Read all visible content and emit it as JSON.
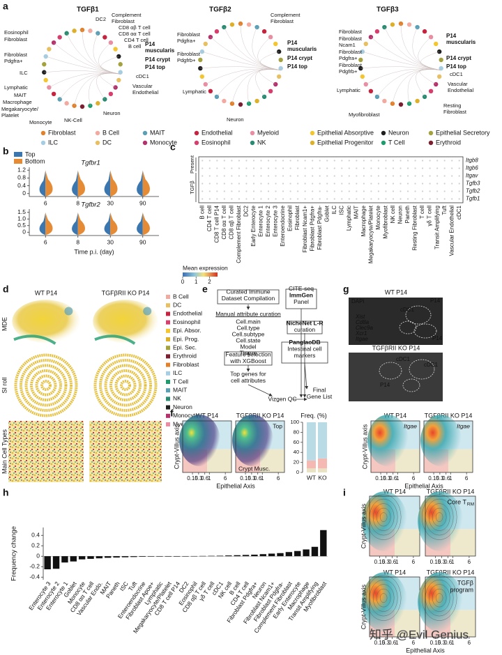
{
  "panel_labels": [
    "a",
    "b",
    "c",
    "d",
    "e",
    "f",
    "g",
    "h",
    "i"
  ],
  "a": {
    "circles": [
      {
        "title": "TGFβ1",
        "labels": [
          "DC2",
          "Complement",
          "Fibroblast",
          "Eosinophil",
          "Fibroblast",
          "CD8 αβ T cell",
          "CD8 αα T cell",
          "CD4 T cell",
          "B cell",
          "Fibroblast",
          "Pdgfra+",
          "ILC",
          "cDC1",
          "Lymphatic",
          "Vascular",
          "Endothelial",
          "MAIT",
          "Macrophage",
          "Megakaryocyte/",
          "Platelet",
          "Neuron",
          "Monocyte",
          "NK-Cell"
        ],
        "focus_labels": [
          "P14",
          "muscularis",
          "P14 crypt",
          "P14 top"
        ]
      },
      {
        "title": "TGFβ2",
        "labels": [
          "Complement",
          "Fibroblast",
          "Fibroblast",
          "Pdgfra+",
          "Fibroblast",
          "Pdgfrb+",
          "Lymphatic",
          "Neuron"
        ],
        "focus_labels": [
          "P14",
          "muscularis",
          "P14 crypt",
          "P14 top"
        ]
      },
      {
        "title": "TGFβ3",
        "labels": [
          "Fibroblast",
          "Fibroblast",
          "Ncam1",
          "Fibroblast",
          "Pdgfra+",
          "Fibroblast",
          "Pdgfrb+",
          "cDC1",
          "Vascular",
          "Endothelial",
          "Lymphatic",
          "Myofibroblast",
          "Resting",
          "Fibroblast"
        ],
        "focus_labels": [
          "P14",
          "muscularis",
          "P14 crypt",
          "P14 top"
        ]
      }
    ],
    "legend": [
      {
        "name": "Fibroblast",
        "color": "#e2812c"
      },
      {
        "name": "B Cell",
        "color": "#f2aaa0"
      },
      {
        "name": "MAIT",
        "color": "#5a9fb3"
      },
      {
        "name": "Endothelial",
        "color": "#c4243f"
      },
      {
        "name": "Myeloid",
        "color": "#e88da2"
      },
      {
        "name": "Epithelial Absorptive",
        "color": "#f2c531"
      },
      {
        "name": "Neuron",
        "color": "#1f1f1f"
      },
      {
        "name": "Epithelial Secretory",
        "color": "#a4a23e"
      },
      {
        "name": "ILC",
        "color": "#a6cde2"
      },
      {
        "name": "DC",
        "color": "#e7c064"
      },
      {
        "name": "Monocyte",
        "color": "#b2336b"
      },
      {
        "name": "Eosinophil",
        "color": "#d53f6e"
      },
      {
        "name": "NK",
        "color": "#2a8a72"
      },
      {
        "name": "Epithelial Progenitor",
        "color": "#dcb02a"
      },
      {
        "name": "T Cell",
        "color": "#1f9c6e"
      },
      {
        "name": "Erythroid",
        "color": "#7a1f30"
      }
    ]
  },
  "b": {
    "legend": [
      {
        "name": "Top",
        "color": "#3b77ae"
      },
      {
        "name": "Bottom",
        "color": "#e58a35"
      }
    ],
    "plots": [
      {
        "title": "Tgfbr1",
        "ylim": [
          -0.15,
          1.35
        ],
        "yticks": [
          0,
          0.4,
          0.8,
          1.2
        ]
      },
      {
        "title": "Tgfbr2",
        "ylim": [
          -0.25,
          1.75
        ],
        "yticks": [
          0,
          0.5,
          {
            "value": 1,
            "label": "1.0"
          },
          1.5
        ]
      }
    ],
    "categories": [
      6,
      8,
      30,
      90
    ],
    "xlabel": "Time p.i. (day)"
  },
  "c": {
    "genes": [
      "Itgb8",
      "Itgb6",
      "Itgav",
      "Tgfb3",
      "Tgfb2",
      "Tgfb1"
    ],
    "groups": [
      "Present",
      "TGFβ"
    ],
    "cells": [
      "B cell",
      "CD4 T cell",
      "CD8 T cell P14",
      "CD8 αα T cell",
      "CD8 αβ T cell",
      "Complement Fibroblast",
      "DC2",
      "Early Enterocyte",
      "Enterocyte 1",
      "Enterocyte 2",
      "Enterocyte 3",
      "Enteroendocrine",
      "Eosinophil",
      "Fibroblast",
      "Fibroblast Ncam1+",
      "Fibroblast Pdgfra+",
      "Fibroblast Pdgfra-",
      "Goblet",
      "ILC",
      "ISC",
      "Lymphatic",
      "MAIT",
      "Macrophage",
      "Megakaryocyte/Platelet",
      "Monocyte",
      "Myofibroblast",
      "NK cell",
      "Neuron",
      "Paneth",
      "Resting Fibroblast",
      "T cell",
      "γδ T cell",
      "Transit Amplifying",
      "Tuft",
      "Vascular Endothelial",
      "cDC1"
    ],
    "colorbar": {
      "title": "Mean expression",
      "lim": [
        0,
        2.6
      ],
      "ticks": [
        0,
        1,
        2
      ]
    }
  },
  "d": {
    "columns": [
      "WT P14",
      "TGFβRII KO P14"
    ],
    "rows": [
      "MDE",
      "SI roll",
      "Main Cell Types"
    ],
    "legend": [
      {
        "name": "B Cell",
        "color": "#f2aaa0"
      },
      {
        "name": "DC",
        "color": "#e7c064"
      },
      {
        "name": "Endothelial",
        "color": "#c4243f"
      },
      {
        "name": "Eosinophil",
        "color": "#d53f6e"
      },
      {
        "name": "Epi. Absor.",
        "color": "#f2c531"
      },
      {
        "name": "Epi. Prog.",
        "color": "#dcb02a"
      },
      {
        "name": "Epi. Sec.",
        "color": "#a4a23e"
      },
      {
        "name": "Erythroid",
        "color": "#7a1f30"
      },
      {
        "name": "Fibroblast",
        "color": "#e2812c"
      },
      {
        "name": "ILC",
        "color": "#a6cde2"
      },
      {
        "name": "T Cell",
        "color": "#1f9c6e"
      },
      {
        "name": "MAIT",
        "color": "#5a9fb3"
      },
      {
        "name": "NK",
        "color": "#2a8a72"
      },
      {
        "name": "Neuron",
        "color": "#1f1f1f"
      },
      {
        "name": "Monocyte",
        "color": "#b2336b"
      },
      {
        "name": "Myeloid",
        "color": "#e88da2"
      }
    ]
  },
  "e": {
    "nodes": [
      {
        "lines": [
          "Curated Immune",
          "Dataset Compilation"
        ]
      },
      {
        "lines": [
          "Manual attribute curation"
        ]
      },
      {
        "lines": [
          "Cell.main",
          "Cell.type",
          "Cell.subtype",
          "Cell.state",
          "Model",
          "Tissue"
        ]
      },
      {
        "lines": [
          "Feature selection",
          "with XGBoost"
        ]
      },
      {
        "lines": [
          "Top genes for",
          "cell attributes"
        ]
      },
      {
        "lines": [
          "CITE-seq",
          "ImmGen",
          "Panel"
        ]
      },
      {
        "lines": [
          "NicheNet L-R",
          "curation"
        ]
      },
      {
        "lines": [
          "PanglaoDB",
          "Intestinal cell",
          "markers"
        ]
      },
      {
        "lines": [
          "Vizgen QC"
        ]
      },
      {
        "lines": [
          "Final",
          "Gene List"
        ]
      }
    ]
  },
  "f": {
    "columns": [
      "WT P14",
      "TGFβRII KO P14",
      "WT P14",
      "TGFβRII KO P14"
    ],
    "ylabel": "Crypt-Villus axis",
    "xlabel": "Epithelial Axis",
    "xlim": [
      0.05,
      12
    ],
    "xticks": [
      0.15,
      0.3,
      0.6,
      1,
      6
    ],
    "annotations": [
      "Top",
      "Crypt Musc.",
      "Itgae",
      "Itgae"
    ],
    "freq": {
      "title": "Freq. (%)",
      "categories": [
        "WT",
        "KO"
      ],
      "colors": [
        "#e9e3c4",
        "#f3b9b2",
        "#b9dbe6"
      ],
      "values": [
        [
          8,
          8
        ],
        [
          16,
          20
        ],
        [
          76,
          72
        ]
      ],
      "ylim": [
        0,
        100
      ],
      "yticks": [
        0,
        20,
        40,
        60,
        80,
        100
      ]
    }
  },
  "g": {
    "labels": [
      {
        "text": "WT P14",
        "color": "#111111"
      },
      {
        "text": "DAPI",
        "color": "#ffffff"
      },
      {
        "text": "P14",
        "color": "#ffffff"
      },
      {
        "text": "cDC1",
        "color": "#ffffff"
      },
      {
        "text": "Xist",
        "color": "#e23fd0"
      },
      {
        "text": "Cd8a",
        "color": "#ffffff"
      },
      {
        "text": "Clec9a",
        "color": "#f2e23a"
      },
      {
        "text": "Xcr1",
        "color": "#5fd75f"
      },
      {
        "text": "Itgae",
        "color": "#f07a2a"
      },
      {
        "text": "P14",
        "color": "#ffffff"
      },
      {
        "text": "TGFβRII KO P14",
        "color": "#111111"
      },
      {
        "text": "cDC1",
        "color": "#ffffff"
      },
      {
        "text": "cDC1",
        "color": "#ffffff"
      },
      {
        "text": "P14",
        "color": "#ffffff"
      }
    ]
  },
  "h": {
    "ylabel": "Frequency change",
    "categories": [
      "Enterocyte 3",
      "Enterocyte 2",
      "Enterocyte 1",
      "Goblet",
      "Monocyte",
      "CD8 αα T cell",
      "Vascular Endo.",
      "MAIT",
      "Paneth",
      "ISC",
      "Tuft",
      "Enteroendocrine",
      "Fibroblast Apoe+",
      "Lymphatic",
      "Megakaryocyte/Platelet",
      "CD8 T cell P14",
      "DC2",
      "Eosinophil",
      "CD8 αβ T cell",
      "γδ T cell",
      "cDC1",
      "NK cell",
      "B cell",
      "CD4 T cell",
      "Fibroblast Pdgfra+",
      "Neuron",
      "Fibroblast Ncam1+",
      "Fibroblast Pdgfra-",
      "Complement Fibroblast",
      "Early Enterocyte",
      "Macrophage",
      "Transit Amplifying",
      "Myofibroblast"
    ],
    "values": [
      -0.25,
      -0.24,
      -0.12,
      -0.1,
      -0.06,
      -0.05,
      -0.04,
      -0.03,
      -0.025,
      -0.02,
      -0.015,
      -0.01,
      -0.008,
      -0.005,
      -0.003,
      -0.002,
      0.002,
      0.004,
      0.006,
      0.008,
      0.01,
      0.015,
      0.02,
      0.025,
      0.03,
      0.04,
      0.05,
      0.06,
      0.08,
      0.1,
      0.13,
      0.18,
      0.5
    ],
    "color": "#111111",
    "label_colors": {
      "CD8 T cell P14": "#c0282d"
    },
    "ylim": [
      -0.45,
      0.55
    ],
    "yticks": [
      -0.4,
      -0.2,
      0,
      0.2,
      0.4
    ]
  },
  "i": {
    "columns": [
      "WT P14",
      "TGFβRII KO P14"
    ],
    "rows": [
      {
        "lines": [
          "Core T"
        ],
        "sub": "RM"
      },
      {
        "lines": [
          "TGFβ",
          "program"
        ]
      }
    ],
    "ylabel": "Crypt-Villus axis",
    "xlabel": "Epithelial Axis",
    "xlim": [
      0.05,
      12
    ],
    "xticks": [
      0.15,
      0.3,
      0.6,
      1,
      6
    ]
  },
  "watermark": "知乎 @Evil Genius"
}
